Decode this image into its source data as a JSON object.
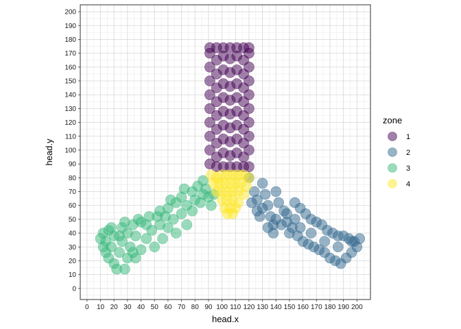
{
  "chart_data": {
    "type": "scatter",
    "title": "",
    "xlabel": "head.x",
    "ylabel": "head.y",
    "xlim": [
      -5,
      210
    ],
    "ylim": [
      -8,
      205
    ],
    "x_ticks": [
      0,
      10,
      20,
      30,
      40,
      50,
      60,
      70,
      80,
      90,
      100,
      110,
      120,
      130,
      140,
      150,
      160,
      170,
      180,
      190,
      200
    ],
    "y_ticks": [
      0,
      10,
      20,
      30,
      40,
      50,
      60,
      70,
      80,
      90,
      100,
      110,
      120,
      130,
      140,
      150,
      160,
      170,
      180,
      190,
      200
    ],
    "x_tick_labels": [
      "0",
      "10",
      "20",
      "30",
      "40",
      "50",
      "60",
      "70",
      "80",
      "90",
      "100",
      "110",
      "120",
      "130",
      "140",
      "150",
      "160",
      "170",
      "180",
      "190",
      "200"
    ],
    "y_tick_labels": [
      "0",
      "10",
      "20",
      "30",
      "40",
      "50",
      "60",
      "70",
      "80",
      "90",
      "100",
      "110",
      "120",
      "130",
      "140",
      "150",
      "160",
      "170",
      "180",
      "190",
      "200"
    ],
    "grid": true,
    "minor_grid": true,
    "legend": {
      "title": "zone",
      "placement": "right",
      "entries": [
        {
          "label": "1",
          "color": "#440154"
        },
        {
          "label": "2",
          "color": "#31688e"
        },
        {
          "label": "3",
          "color": "#35b779"
        },
        {
          "label": "4",
          "color": "#fde725"
        }
      ]
    },
    "point_alpha": 0.5,
    "series": [
      {
        "name": "1",
        "color": "#440154",
        "region": "rectangular arm (vertical)",
        "points": [
          [
            91,
            90
          ],
          [
            91,
            100
          ],
          [
            91,
            110
          ],
          [
            91,
            120
          ],
          [
            91,
            130
          ],
          [
            91,
            140
          ],
          [
            91,
            150
          ],
          [
            91,
            160
          ],
          [
            91,
            170
          ],
          [
            91,
            174
          ],
          [
            96,
            88
          ],
          [
            96,
            95
          ],
          [
            96,
            105
          ],
          [
            96,
            115
          ],
          [
            96,
            125
          ],
          [
            96,
            135
          ],
          [
            96,
            145
          ],
          [
            96,
            155
          ],
          [
            96,
            165
          ],
          [
            96,
            174
          ],
          [
            101,
            88
          ],
          [
            101,
            98
          ],
          [
            101,
            108
          ],
          [
            101,
            118
          ],
          [
            101,
            128
          ],
          [
            101,
            138
          ],
          [
            101,
            148
          ],
          [
            101,
            158
          ],
          [
            101,
            168
          ],
          [
            101,
            174
          ],
          [
            106,
            88
          ],
          [
            106,
            96
          ],
          [
            106,
            106
          ],
          [
            106,
            116
          ],
          [
            106,
            126
          ],
          [
            106,
            136
          ],
          [
            106,
            146
          ],
          [
            106,
            156
          ],
          [
            106,
            166
          ],
          [
            106,
            174
          ],
          [
            111,
            88
          ],
          [
            111,
            98
          ],
          [
            111,
            108
          ],
          [
            111,
            118
          ],
          [
            111,
            128
          ],
          [
            111,
            138
          ],
          [
            111,
            148
          ],
          [
            111,
            158
          ],
          [
            111,
            168
          ],
          [
            111,
            174
          ],
          [
            116,
            88
          ],
          [
            116,
            95
          ],
          [
            116,
            105
          ],
          [
            116,
            115
          ],
          [
            116,
            125
          ],
          [
            116,
            135
          ],
          [
            116,
            145
          ],
          [
            116,
            155
          ],
          [
            116,
            165
          ],
          [
            116,
            174
          ],
          [
            120,
            88
          ],
          [
            120,
            100
          ],
          [
            120,
            110
          ],
          [
            120,
            120
          ],
          [
            120,
            130
          ],
          [
            120,
            140
          ],
          [
            120,
            150
          ],
          [
            120,
            160
          ],
          [
            120,
            170
          ],
          [
            120,
            174
          ]
        ]
      },
      {
        "name": "2",
        "color": "#31688e",
        "region": "rectangular arm (lower right, hollow centre)",
        "points": [
          [
            120,
            80
          ],
          [
            124,
            70
          ],
          [
            122,
            62
          ],
          [
            126,
            56
          ],
          [
            130,
            76
          ],
          [
            132,
            68
          ],
          [
            134,
            60
          ],
          [
            136,
            52
          ],
          [
            138,
            46
          ],
          [
            140,
            70
          ],
          [
            142,
            62
          ],
          [
            146,
            56
          ],
          [
            148,
            48
          ],
          [
            152,
            44
          ],
          [
            154,
            62
          ],
          [
            158,
            58
          ],
          [
            162,
            54
          ],
          [
            166,
            50
          ],
          [
            170,
            48
          ],
          [
            174,
            46
          ],
          [
            178,
            42
          ],
          [
            182,
            40
          ],
          [
            186,
            38
          ],
          [
            190,
            38
          ],
          [
            194,
            36
          ],
          [
            198,
            34
          ],
          [
            202,
            36
          ],
          [
            150,
            40
          ],
          [
            156,
            38
          ],
          [
            160,
            34
          ],
          [
            164,
            32
          ],
          [
            168,
            30
          ],
          [
            172,
            28
          ],
          [
            176,
            26
          ],
          [
            180,
            22
          ],
          [
            184,
            20
          ],
          [
            188,
            18
          ],
          [
            192,
            22
          ],
          [
            196,
            26
          ],
          [
            200,
            30
          ],
          [
            144,
            46
          ],
          [
            138,
            40
          ],
          [
            134,
            44
          ],
          [
            128,
            52
          ],
          [
            126,
            64
          ],
          [
            176,
            34
          ],
          [
            186,
            30
          ],
          [
            166,
            40
          ],
          [
            158,
            44
          ],
          [
            148,
            54
          ],
          [
            196,
            34
          ],
          [
            130,
            58
          ],
          [
            140,
            50
          ],
          [
            154,
            50
          ]
        ]
      },
      {
        "name": "3",
        "color": "#35b779",
        "region": "rectangular arm (lower left)",
        "points": [
          [
            10,
            36
          ],
          [
            12,
            30
          ],
          [
            12,
            40
          ],
          [
            14,
            26
          ],
          [
            14,
            34
          ],
          [
            16,
            42
          ],
          [
            16,
            22
          ],
          [
            18,
            30
          ],
          [
            20,
            38
          ],
          [
            20,
            18
          ],
          [
            22,
            14
          ],
          [
            24,
            26
          ],
          [
            26,
            44
          ],
          [
            26,
            34
          ],
          [
            28,
            14
          ],
          [
            30,
            22
          ],
          [
            30,
            40
          ],
          [
            32,
            30
          ],
          [
            34,
            46
          ],
          [
            36,
            38
          ],
          [
            36,
            22
          ],
          [
            40,
            48
          ],
          [
            40,
            28
          ],
          [
            44,
            36
          ],
          [
            46,
            52
          ],
          [
            48,
            42
          ],
          [
            50,
            30
          ],
          [
            54,
            56
          ],
          [
            54,
            46
          ],
          [
            56,
            36
          ],
          [
            60,
            58
          ],
          [
            60,
            44
          ],
          [
            64,
            50
          ],
          [
            66,
            62
          ],
          [
            66,
            40
          ],
          [
            70,
            54
          ],
          [
            70,
            66
          ],
          [
            74,
            60
          ],
          [
            74,
            46
          ],
          [
            78,
            70
          ],
          [
            78,
            56
          ],
          [
            80,
            64
          ],
          [
            82,
            74
          ],
          [
            84,
            62
          ],
          [
            86,
            78
          ],
          [
            86,
            68
          ],
          [
            88,
            72
          ],
          [
            90,
            66
          ],
          [
            92,
            60
          ],
          [
            94,
            68
          ],
          [
            44,
            46
          ],
          [
            38,
            50
          ],
          [
            52,
            52
          ],
          [
            62,
            64
          ],
          [
            34,
            26
          ],
          [
            24,
            38
          ],
          [
            18,
            44
          ],
          [
            28,
            48
          ],
          [
            58,
            52
          ],
          [
            72,
            72
          ]
        ]
      },
      {
        "name": "4",
        "color": "#fde725",
        "region": "triangular centre",
        "points": [
          [
            92,
            82
          ],
          [
            96,
            80
          ],
          [
            100,
            82
          ],
          [
            104,
            82
          ],
          [
            108,
            82
          ],
          [
            112,
            82
          ],
          [
            116,
            82
          ],
          [
            120,
            80
          ],
          [
            94,
            76
          ],
          [
            98,
            76
          ],
          [
            102,
            76
          ],
          [
            106,
            76
          ],
          [
            110,
            76
          ],
          [
            114,
            76
          ],
          [
            118,
            74
          ],
          [
            96,
            70
          ],
          [
            100,
            70
          ],
          [
            104,
            70
          ],
          [
            108,
            70
          ],
          [
            112,
            70
          ],
          [
            116,
            68
          ],
          [
            100,
            64
          ],
          [
            104,
            64
          ],
          [
            108,
            64
          ],
          [
            112,
            62
          ],
          [
            102,
            58
          ],
          [
            106,
            58
          ],
          [
            110,
            58
          ],
          [
            104,
            54
          ],
          [
            108,
            54
          ]
        ]
      }
    ]
  }
}
